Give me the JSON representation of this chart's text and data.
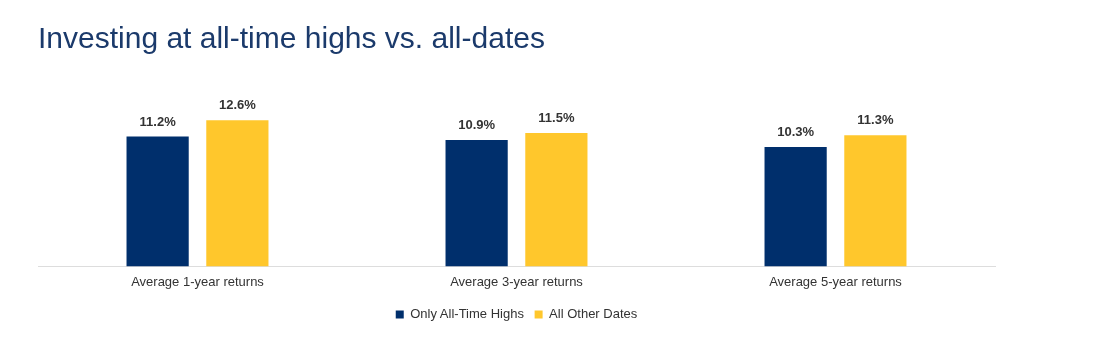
{
  "chart_data": {
    "type": "bar",
    "title": "Investing at all-time highs vs. all-dates",
    "categories": [
      "Average 1-year returns",
      "Average 3-year returns",
      "Average 5-year returns"
    ],
    "series": [
      {
        "name": "Only All-Time Highs",
        "color": "#002f6c",
        "values": [
          11.2,
          10.9,
          10.3
        ],
        "value_labels": [
          "11.2%",
          "10.9%",
          "10.3%"
        ]
      },
      {
        "name": "All Other Dates",
        "color": "#ffc72c",
        "values": [
          12.6,
          11.5,
          11.3
        ],
        "value_labels": [
          "12.6%",
          "11.5%",
          "11.3%"
        ]
      }
    ],
    "legend": "bottom",
    "grid": false
  }
}
